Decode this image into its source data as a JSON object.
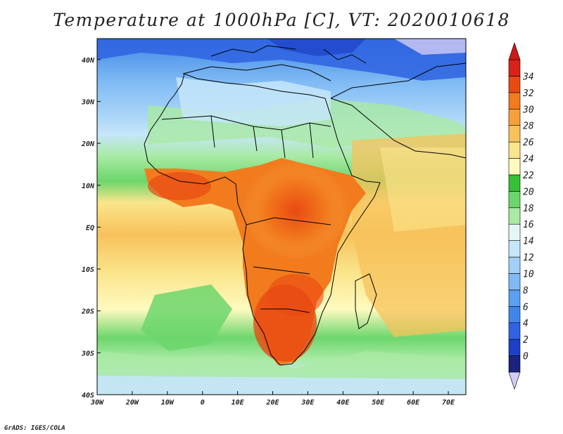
{
  "title": "Temperature at 1000hPa [C], VT: 2020010618",
  "credit": "GrADS: IGES/COLA",
  "map": {
    "lon_ticks": [
      "30W",
      "20W",
      "10W",
      "0",
      "10E",
      "20E",
      "30E",
      "40E",
      "50E",
      "60E",
      "70E"
    ],
    "lat_ticks": [
      "40N",
      "30N",
      "20N",
      "10N",
      "EQ",
      "10S",
      "20S",
      "30S",
      "40S"
    ],
    "lon_range": [
      -30,
      75
    ],
    "lat_range": [
      -40,
      45
    ]
  },
  "colorbar": {
    "unit": "C",
    "levels": [
      "0",
      "2",
      "4",
      "6",
      "8",
      "10",
      "12",
      "14",
      "16",
      "18",
      "20",
      "22",
      "24",
      "26",
      "28",
      "30",
      "32",
      "34"
    ],
    "colors": [
      "#1a237e",
      "#1e40c8",
      "#2f63e0",
      "#3f86e8",
      "#5aa0f0",
      "#7fbaf4",
      "#a2d0f7",
      "#c6e6f9",
      "#e4f7f4",
      "#a9eaa4",
      "#6cd66c",
      "#35c035",
      "#fffac0",
      "#fae58c",
      "#f7c25b",
      "#f5a13b",
      "#f27b1e",
      "#e94a12",
      "#d8221a"
    ],
    "under_color": "#d2cdf5",
    "over_color": "#d01818"
  }
}
